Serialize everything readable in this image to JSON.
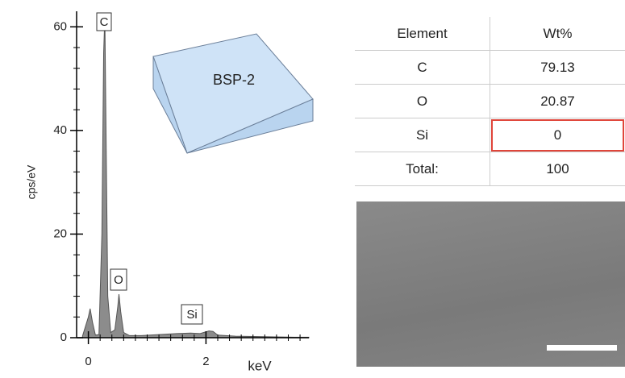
{
  "chart_data": {
    "type": "area",
    "y_label": "cps/eV",
    "x_label": "keV",
    "inset_label": "BSP-2",
    "annotations": [
      "C",
      "O",
      "Si"
    ],
    "x": [
      -0.1,
      0,
      0.03,
      0.07,
      0.12,
      0.18,
      0.23,
      0.26,
      0.28,
      0.3,
      0.33,
      0.38,
      0.45,
      0.5,
      0.52,
      0.55,
      0.6,
      0.7,
      0.9,
      1.2,
      1.5,
      1.74,
      1.9,
      2.05,
      2.12,
      2.2,
      2.5,
      3.0,
      3.5,
      3.75
    ],
    "values": [
      0.3,
      4,
      5.6,
      3,
      0.5,
      0.6,
      20,
      55,
      62,
      40,
      8,
      1,
      1.5,
      6,
      8.4,
      5,
      1,
      0.4,
      0.4,
      0.6,
      0.8,
      0.9,
      0.8,
      1.3,
      1.2,
      0.5,
      0.3,
      0.2,
      0.1,
      0.1
    ],
    "color": "#8c8c8c",
    "xlim": [
      -0.2,
      3.75
    ],
    "ylim": [
      0,
      63
    ],
    "xticks": [
      0,
      2
    ],
    "yticks": [
      0,
      20,
      40,
      60
    ],
    "xminorticks": [
      0.2,
      0.4,
      0.6,
      0.8,
      1,
      1.2,
      1.4,
      1.6,
      1.8,
      2.2,
      2.4,
      2.6,
      2.8,
      3,
      3.2,
      3.4,
      3.6
    ],
    "yminorticks": [
      4,
      8,
      12,
      16,
      24,
      28,
      32,
      36,
      44,
      48,
      52,
      56
    ]
  },
  "table": {
    "header": [
      "Element",
      "Wt%"
    ],
    "rows": [
      [
        "C",
        "79.13"
      ],
      [
        "O",
        "20.87"
      ],
      [
        "Si",
        "0"
      ],
      [
        "Total:",
        "100"
      ]
    ]
  }
}
